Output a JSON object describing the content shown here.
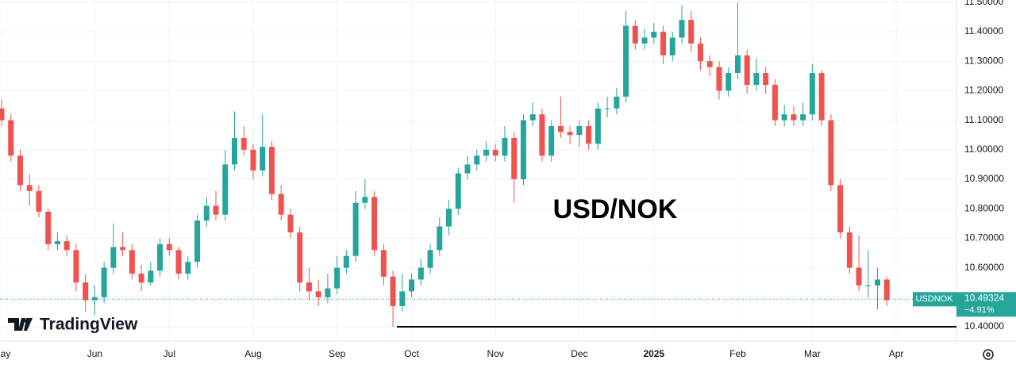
{
  "chart_data": {
    "type": "candlestick",
    "annotation": "USD/NOK",
    "logo": "TradingView",
    "symbol": "USDNOK",
    "last": 10.49324,
    "change": {
      "value": -4.91,
      "label": "−4.91%"
    },
    "support_line": 10.4,
    "up_color": "#26a69a",
    "down_color": "#ef5350",
    "grid": true,
    "open": [
      11.14,
      11.1,
      10.98,
      10.88,
      10.86,
      10.79,
      10.68,
      10.69,
      10.66,
      10.55,
      10.49,
      10.5,
      10.6,
      10.67,
      10.66,
      10.58,
      10.55,
      10.59,
      10.68,
      10.66,
      10.58,
      10.62,
      10.76,
      10.81,
      10.78,
      10.95,
      11.04,
      11.0,
      10.93,
      11.01,
      10.85,
      10.78,
      10.72,
      10.55,
      10.52,
      10.5,
      10.53,
      10.6,
      10.64,
      10.82,
      10.84,
      10.66,
      10.57,
      10.47,
      10.52,
      10.56,
      10.6,
      10.66,
      10.74,
      10.8,
      10.92,
      10.95,
      10.98,
      11.0,
      10.98,
      11.04,
      10.9,
      11.1,
      11.12,
      10.98,
      11.08,
      11.06,
      11.05,
      11.08,
      11.02,
      11.14,
      11.14,
      11.18,
      11.42,
      11.36,
      11.38,
      11.4,
      11.32,
      11.38,
      11.44,
      11.36,
      11.3,
      11.28,
      11.2,
      11.26,
      11.32,
      11.22,
      11.26,
      11.22,
      11.1,
      11.12,
      11.1,
      11.12,
      11.26,
      11.1,
      10.88,
      10.72,
      10.6,
      10.54,
      10.54,
      10.56
    ],
    "high": [
      11.17,
      11.12,
      11.0,
      10.92,
      10.88,
      10.8,
      10.72,
      10.71,
      10.68,
      10.58,
      10.54,
      10.62,
      10.75,
      10.72,
      10.68,
      10.61,
      10.62,
      10.7,
      10.7,
      10.67,
      10.64,
      10.78,
      10.84,
      10.86,
      11.0,
      11.13,
      11.08,
      11.02,
      11.12,
      11.03,
      10.88,
      10.8,
      10.74,
      10.6,
      10.56,
      10.58,
      10.64,
      10.66,
      10.86,
      10.9,
      10.86,
      10.68,
      10.59,
      10.58,
      10.58,
      10.63,
      10.68,
      10.77,
      10.83,
      10.94,
      10.98,
      11.0,
      11.03,
      11.02,
      11.08,
      11.06,
      11.12,
      11.16,
      11.14,
      11.1,
      11.18,
      11.08,
      11.1,
      11.1,
      11.16,
      11.18,
      11.21,
      11.47,
      11.44,
      11.41,
      11.43,
      11.42,
      11.4,
      11.49,
      11.47,
      11.38,
      11.32,
      11.3,
      11.28,
      11.5,
      11.34,
      11.31,
      11.28,
      11.24,
      11.15,
      11.15,
      11.16,
      11.29,
      11.27,
      11.12,
      10.9,
      10.74,
      10.71,
      10.66,
      10.6,
      10.57
    ],
    "low": [
      11.08,
      10.96,
      10.86,
      10.81,
      10.77,
      10.66,
      10.66,
      10.64,
      10.52,
      10.45,
      10.44,
      10.48,
      10.58,
      10.64,
      10.56,
      10.52,
      10.54,
      10.57,
      10.64,
      10.56,
      10.56,
      10.6,
      10.74,
      10.76,
      10.76,
      10.93,
      10.98,
      10.9,
      10.91,
      10.83,
      10.76,
      10.7,
      10.52,
      10.49,
      10.47,
      10.48,
      10.51,
      10.58,
      10.62,
      10.8,
      10.64,
      10.54,
      10.4,
      10.45,
      10.5,
      10.54,
      10.58,
      10.64,
      10.71,
      10.78,
      10.9,
      10.93,
      10.96,
      10.96,
      10.96,
      10.82,
      10.88,
      11.08,
      10.96,
      10.96,
      11.04,
      11.02,
      11.01,
      11.0,
      11.0,
      11.11,
      11.12,
      11.16,
      11.34,
      11.34,
      11.36,
      11.29,
      11.3,
      11.36,
      11.33,
      11.27,
      11.25,
      11.17,
      11.18,
      11.24,
      11.19,
      11.2,
      11.19,
      11.08,
      11.08,
      11.08,
      11.08,
      11.1,
      11.08,
      10.86,
      10.7,
      10.58,
      10.52,
      10.5,
      10.46,
      10.47
    ],
    "close": [
      11.1,
      10.98,
      10.88,
      10.86,
      10.79,
      10.68,
      10.69,
      10.66,
      10.55,
      10.49,
      10.5,
      10.6,
      10.67,
      10.66,
      10.58,
      10.55,
      10.59,
      10.68,
      10.66,
      10.58,
      10.62,
      10.76,
      10.81,
      10.78,
      10.95,
      11.04,
      11.0,
      10.93,
      11.01,
      10.85,
      10.78,
      10.72,
      10.55,
      10.52,
      10.5,
      10.53,
      10.6,
      10.64,
      10.82,
      10.84,
      10.66,
      10.57,
      10.47,
      10.52,
      10.56,
      10.6,
      10.66,
      10.74,
      10.8,
      10.92,
      10.95,
      10.98,
      11.0,
      10.98,
      11.04,
      10.9,
      11.1,
      11.12,
      10.98,
      11.08,
      11.06,
      11.05,
      11.08,
      11.02,
      11.14,
      11.14,
      11.18,
      11.42,
      11.36,
      11.38,
      11.4,
      11.32,
      11.38,
      11.44,
      11.36,
      11.3,
      11.28,
      11.2,
      11.26,
      11.32,
      11.22,
      11.26,
      11.22,
      11.1,
      11.12,
      11.1,
      11.12,
      11.26,
      11.1,
      10.88,
      10.72,
      10.6,
      10.54,
      10.54,
      10.56,
      10.49
    ],
    "xticks": [
      {
        "value": 0,
        "label": "May"
      },
      {
        "value": 10,
        "label": "Jun"
      },
      {
        "value": 18,
        "label": "Jul"
      },
      {
        "value": 27,
        "label": "Aug"
      },
      {
        "value": 36,
        "label": "Sep"
      },
      {
        "value": 44,
        "label": "Oct"
      },
      {
        "value": 53,
        "label": "Nov"
      },
      {
        "value": 62,
        "label": "Dec"
      },
      {
        "value": 70,
        "label": "2025"
      },
      {
        "value": 79,
        "label": "Feb"
      },
      {
        "value": 87,
        "label": "Mar"
      },
      {
        "value": 96,
        "label": "Apr"
      }
    ],
    "ylim": [
      10.3516,
      11.5075
    ],
    "yticks": [
      {
        "value": 10.4,
        "label": "10.40000"
      },
      {
        "value": 10.5,
        "label": "10.50000"
      },
      {
        "value": 10.6,
        "label": "10.60000"
      },
      {
        "value": 10.7,
        "label": "10.70000"
      },
      {
        "value": 10.8,
        "label": "10.80000"
      },
      {
        "value": 10.9,
        "label": "10.90000"
      },
      {
        "value": 11,
        "label": "11.00000"
      },
      {
        "value": 11.1,
        "label": "11.10000"
      },
      {
        "value": 11.2,
        "label": "11.20000"
      },
      {
        "value": 11.3,
        "label": "11.30000"
      },
      {
        "value": 11.4,
        "label": "11.40000"
      },
      {
        "value": 11.5,
        "label": "11.50000"
      }
    ]
  }
}
